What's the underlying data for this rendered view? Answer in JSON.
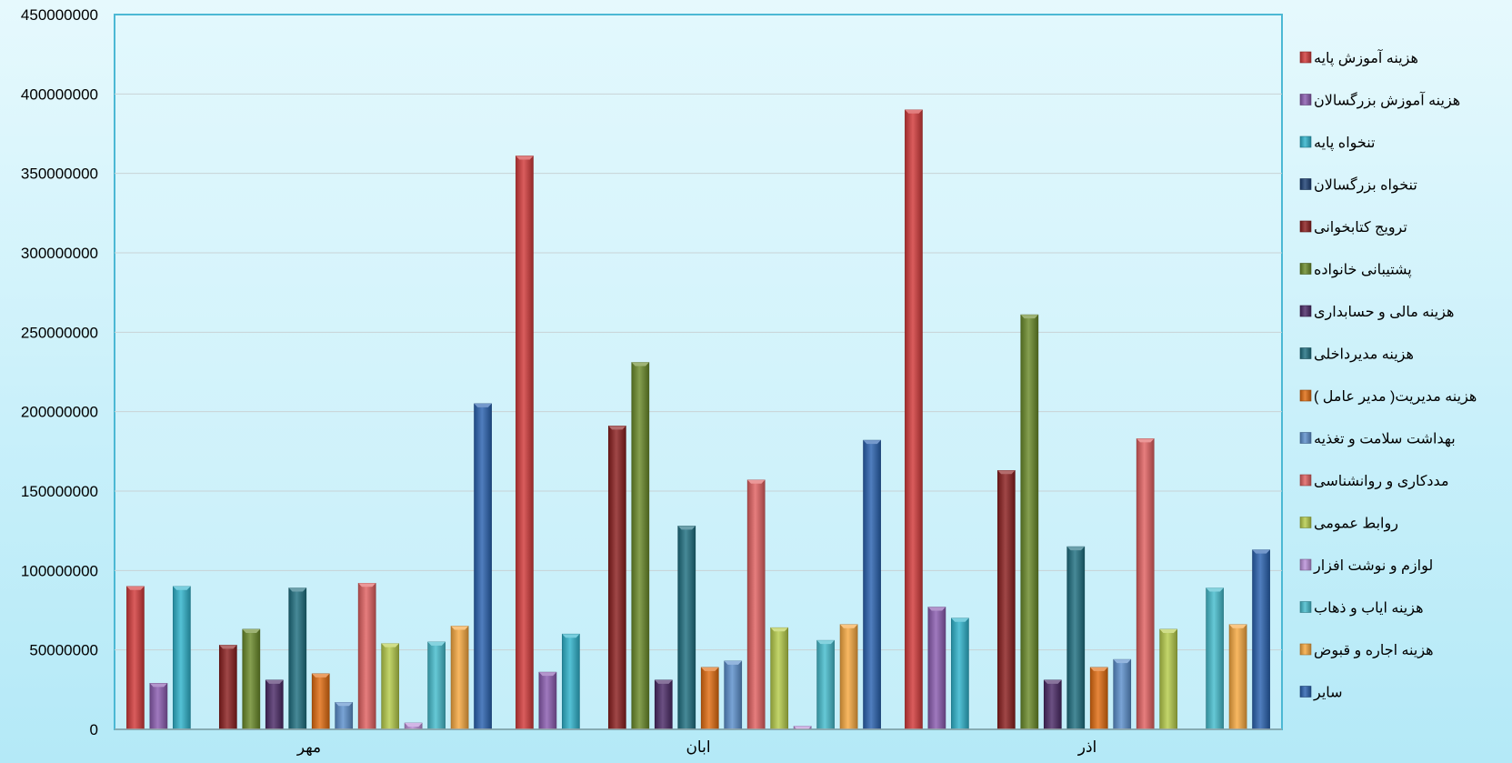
{
  "chart_data": {
    "type": "bar",
    "categories": [
      "مهر",
      "ابان",
      "اذر"
    ],
    "ylim": [
      0,
      450000000
    ],
    "yticks": [
      "0",
      "50000000",
      "100000000",
      "150000000",
      "200000000",
      "250000000",
      "300000000",
      "350000000",
      "400000000",
      "450000000"
    ],
    "grid": true,
    "legend_position": "right",
    "series": [
      {
        "name": "هزینه آموزش پایه",
        "color": "#d23a3a",
        "values": [
          90000000,
          361000000,
          390000000
        ]
      },
      {
        "name": "هزینه آموزش بزرگسالان",
        "color": "#8a5cb0",
        "values": [
          29000000,
          36000000,
          77000000
        ]
      },
      {
        "name": "تنخواه پایه",
        "color": "#2fb3cc",
        "values": [
          90000000,
          60000000,
          70000000
        ]
      },
      {
        "name": "تنخواه بزرگسالان",
        "color": "#1c3f73",
        "values": [
          0,
          0,
          0
        ]
      },
      {
        "name": "ترویج کتابخوانی",
        "color": "#8b1f1f",
        "values": [
          53000000,
          191000000,
          163000000
        ]
      },
      {
        "name": "پشتیبانی خانواده",
        "color": "#6a8a2a",
        "values": [
          63000000,
          231000000,
          261000000
        ]
      },
      {
        "name": "هزینه مالی و حسابداری ",
        "color": "#4a2a66",
        "values": [
          31000000,
          31000000,
          31000000
        ]
      },
      {
        "name": "هزینه مدیرداخلی ",
        "color": "#1e6f80",
        "values": [
          89000000,
          128000000,
          115000000
        ]
      },
      {
        "name": "هزینه مدیریت( مدیر عامل )",
        "color": "#e06b10",
        "values": [
          35000000,
          39000000,
          39000000
        ]
      },
      {
        "name": "بهداشت سلامت و تغذیه",
        "color": "#5b8fcc",
        "values": [
          17000000,
          43000000,
          44000000
        ]
      },
      {
        "name": "مددکاری و روانشناسی",
        "color": "#e06060",
        "values": [
          92000000,
          157000000,
          183000000
        ]
      },
      {
        "name": "روابط عمومی",
        "color": "#b6cc4a",
        "values": [
          54000000,
          64000000,
          63000000
        ]
      },
      {
        "name": "لوازم و نوشت افزار",
        "color": "#b98fd8",
        "values": [
          4000000,
          2000000,
          0
        ]
      },
      {
        "name": "هزینه ایاب و ذهاب",
        "color": "#45bccd",
        "values": [
          55000000,
          56000000,
          89000000
        ]
      },
      {
        "name": "هزینه اجاره و قبوض",
        "color": "#f7a840",
        "values": [
          65000000,
          66000000,
          66000000
        ]
      },
      {
        "name": "سایر",
        "color": "#2a62b0",
        "values": [
          205000000,
          182000000,
          113000000
        ]
      }
    ]
  }
}
